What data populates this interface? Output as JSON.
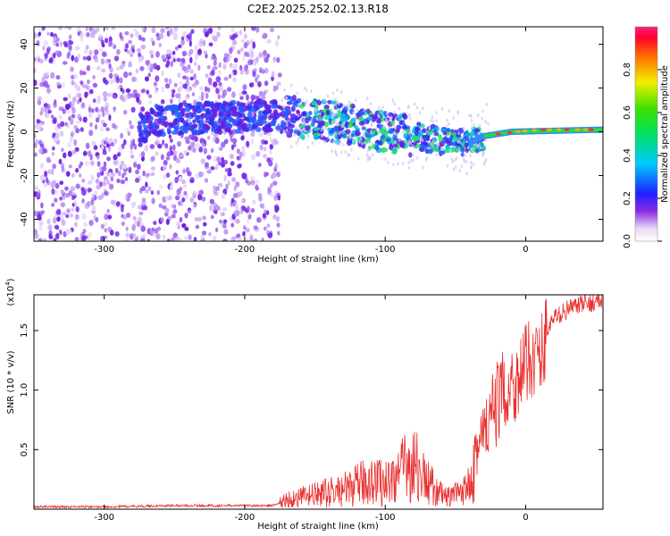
{
  "title": "C2E2.2025.252.02.13.R18",
  "colors": {
    "snr_line": "#e8302f",
    "background": "#ffffff",
    "axis": "#000000"
  },
  "chart_data": [
    {
      "type": "heatmap",
      "name": "spectrogram",
      "xlabel": "Height of straight line (km)",
      "ylabel": "Frequency (Hz)",
      "xlim": [
        -350,
        55
      ],
      "ylim": [
        -50,
        48
      ],
      "xticks": [
        -300,
        -200,
        -100,
        0
      ],
      "xtick_labels": [
        "-300",
        "-200",
        "-100",
        "0"
      ],
      "yticks": [
        -40,
        -20,
        0,
        20,
        40
      ],
      "ytick_labels": [
        "-40",
        "-20",
        "0",
        "20",
        "40"
      ],
      "signal_ridge": [
        {
          "x": -270,
          "y": 5
        },
        {
          "x": -200,
          "y": 7
        },
        {
          "x": -170,
          "y": 7
        },
        {
          "x": -140,
          "y": 5
        },
        {
          "x": -100,
          "y": 0
        },
        {
          "x": -60,
          "y": -4
        },
        {
          "x": -40,
          "y": -5
        },
        {
          "x": -30,
          "y": -2
        },
        {
          "x": -10,
          "y": 0
        },
        {
          "x": 10,
          "y": 1
        },
        {
          "x": 55,
          "y": 1
        }
      ],
      "noise_region_x": [
        -350,
        -175
      ],
      "colorbar": {
        "label": "Normalized spectral amplitude",
        "range": [
          0,
          1
        ],
        "ticks": [
          0.0,
          0.2,
          0.4,
          0.6,
          0.8
        ],
        "tick_labels": [
          "0.0",
          "0.2",
          "0.4",
          "0.6",
          "0.8"
        ]
      }
    },
    {
      "type": "line",
      "name": "snr",
      "xlabel": "Height of straight line (km)",
      "ylabel": "SNR (10 * v/v)",
      "scale_note": "(x10",
      "scale_exp": "4",
      "xlim": [
        -350,
        55
      ],
      "ylim": [
        0,
        1.8
      ],
      "xticks": [
        -300,
        -200,
        -100,
        0
      ],
      "xtick_labels": [
        "-300",
        "-200",
        "-100",
        "0"
      ],
      "yticks": [
        0.5,
        1.0,
        1.5
      ],
      "ytick_labels": [
        "0.5",
        "1.0",
        "1.5"
      ],
      "series": [
        {
          "name": "SNR",
          "x": [
            -350,
            -300,
            -250,
            -200,
            -180,
            -170,
            -160,
            -150,
            -140,
            -130,
            -120,
            -110,
            -100,
            -90,
            -85,
            -80,
            -75,
            -70,
            -65,
            -60,
            -55,
            -50,
            -45,
            -40,
            -35,
            -30,
            -25,
            -20,
            -15,
            -10,
            -5,
            0,
            5,
            10,
            15,
            20,
            30,
            40,
            50,
            55
          ],
          "y": [
            0.02,
            0.02,
            0.03,
            0.03,
            0.03,
            0.08,
            0.1,
            0.12,
            0.14,
            0.16,
            0.2,
            0.25,
            0.22,
            0.3,
            0.35,
            0.4,
            0.3,
            0.22,
            0.18,
            0.12,
            0.1,
            0.12,
            0.12,
            0.3,
            0.5,
            0.6,
            0.75,
            0.9,
            1.0,
            1.05,
            1.1,
            1.2,
            1.3,
            1.25,
            1.5,
            1.6,
            1.68,
            1.72,
            1.74,
            1.75
          ]
        }
      ]
    }
  ]
}
